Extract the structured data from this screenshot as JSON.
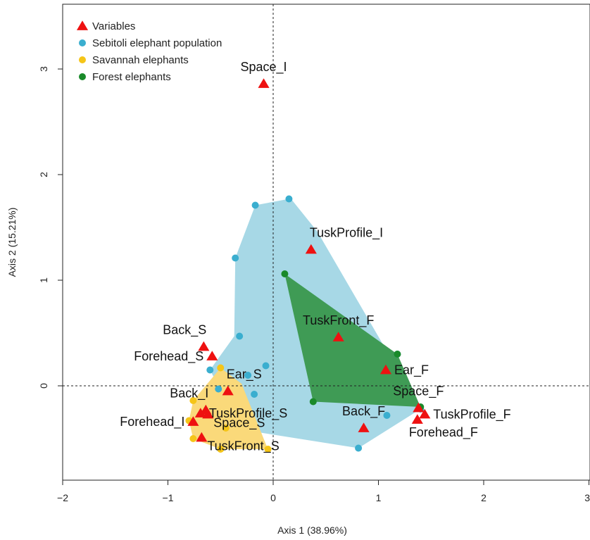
{
  "chart_data": {
    "type": "scatter",
    "xlabel": "Axis 1 (38.96%)",
    "ylabel": "Axis 2 (15.21%)",
    "xlim": [
      -2,
      3
    ],
    "ylim": [
      -0.9,
      3.6
    ],
    "xticks": [
      -2,
      -1,
      0,
      1,
      2,
      3
    ],
    "yticks": [
      0,
      1,
      2,
      3
    ],
    "xtick_labels": [
      "−2",
      "−1",
      "0",
      "1",
      "2",
      "3"
    ],
    "ytick_labels": [
      "0",
      "1",
      "2",
      "3"
    ],
    "grid": false,
    "reference_lines": {
      "x": 0,
      "y": 0,
      "style": "dashed"
    },
    "legend": {
      "placement": "top-left",
      "entries": [
        {
          "label": "Variables",
          "marker": "triangle",
          "color": "#ee1111"
        },
        {
          "label": "Sebitoli elephant population",
          "marker": "circle",
          "color": "#3aaecf"
        },
        {
          "label": "Savannah elephants",
          "marker": "circle",
          "color": "#f5c518"
        },
        {
          "label": "Forest elephants",
          "marker": "circle",
          "color": "#1a8a2a"
        }
      ]
    },
    "hulls": [
      {
        "group": "Sebitoli elephant population",
        "fill": "#a7d8e6",
        "vertices": [
          [
            0.15,
            1.77
          ],
          [
            0.17,
            1.77
          ],
          [
            0.42,
            1.46
          ],
          [
            1.4,
            -0.22
          ],
          [
            0.81,
            -0.59
          ],
          [
            -0.27,
            -0.42
          ],
          [
            -0.38,
            -0.27
          ],
          [
            -0.6,
            0.15
          ],
          [
            -0.37,
            0.47
          ],
          [
            -0.36,
            1.21
          ],
          [
            -0.17,
            1.71
          ]
        ]
      },
      {
        "group": "Forest elephants",
        "fill": "#3f9b55",
        "vertices": [
          [
            0.11,
            1.06
          ],
          [
            1.18,
            0.3
          ],
          [
            1.4,
            -0.2
          ],
          [
            0.38,
            -0.15
          ]
        ]
      },
      {
        "group": "Savannah elephants",
        "fill": "#fad97a",
        "vertices": [
          [
            -0.5,
            0.17
          ],
          [
            -0.3,
            0.02
          ],
          [
            -0.05,
            -0.6
          ],
          [
            -0.5,
            -0.6
          ],
          [
            -0.76,
            -0.5
          ],
          [
            -0.8,
            -0.33
          ],
          [
            -0.76,
            -0.14
          ]
        ]
      }
    ],
    "series": [
      {
        "name": "Sebitoli elephant population",
        "color": "#3aaecf",
        "points": [
          [
            0.15,
            1.77
          ],
          [
            -0.17,
            1.71
          ],
          [
            -0.36,
            1.21
          ],
          [
            -0.32,
            0.47
          ],
          [
            -0.07,
            0.19
          ],
          [
            -0.24,
            0.1
          ],
          [
            -0.6,
            0.15
          ],
          [
            -0.52,
            -0.03
          ],
          [
            -0.18,
            -0.08
          ],
          [
            1.08,
            -0.28
          ],
          [
            0.81,
            -0.59
          ],
          [
            1.4,
            -0.22
          ],
          [
            1.18,
            0.3
          ]
        ]
      },
      {
        "name": "Savannah elephants",
        "color": "#f5c518",
        "points": [
          [
            -0.5,
            0.17
          ],
          [
            -0.76,
            -0.14
          ],
          [
            -0.8,
            -0.33
          ],
          [
            -0.76,
            -0.5
          ],
          [
            -0.45,
            -0.4
          ],
          [
            -0.5,
            -0.6
          ],
          [
            -0.05,
            -0.6
          ]
        ]
      },
      {
        "name": "Forest elephants",
        "color": "#1a8a2a",
        "points": [
          [
            0.11,
            1.06
          ],
          [
            0.38,
            -0.15
          ],
          [
            1.18,
            0.3
          ],
          [
            1.4,
            -0.2
          ]
        ]
      }
    ],
    "variables": [
      {
        "label": "Space_I",
        "x": -0.09,
        "y": 2.86,
        "label_anchor": "above"
      },
      {
        "label": "TuskProfile_I",
        "x": 0.36,
        "y": 1.29,
        "label_anchor": "above-right"
      },
      {
        "label": "TuskFront_F",
        "x": 0.62,
        "y": 0.46,
        "label_anchor": "above"
      },
      {
        "label": "Ear_F",
        "x": 1.07,
        "y": 0.15,
        "label_anchor": "right"
      },
      {
        "label": "Space_F",
        "x": 1.38,
        "y": -0.21,
        "label_anchor": "above"
      },
      {
        "label": "TuskProfile_F",
        "x": 1.44,
        "y": -0.27,
        "label_anchor": "right"
      },
      {
        "label": "Forehead_F",
        "x": 1.37,
        "y": -0.32,
        "label_anchor": "below"
      },
      {
        "label": "Back_F",
        "x": 0.86,
        "y": -0.4,
        "label_anchor": "above"
      },
      {
        "label": "Back_S",
        "x": -0.66,
        "y": 0.37,
        "label_anchor": "above-left"
      },
      {
        "label": "Forehead_S",
        "x": -0.58,
        "y": 0.28,
        "label_anchor": "left"
      },
      {
        "label": "Ear_S",
        "x": -0.43,
        "y": -0.05,
        "label_anchor": "above-right"
      },
      {
        "label": "Back_I",
        "x": -0.64,
        "y": -0.23,
        "label_anchor": "above-left"
      },
      {
        "label": "TuskProfile_S",
        "x": -0.69,
        "y": -0.26,
        "label_anchor": "right"
      },
      {
        "label": "Forehead_I",
        "x": -0.76,
        "y": -0.34,
        "label_anchor": "left"
      },
      {
        "label": "Space_S",
        "x": -0.62,
        "y": -0.27,
        "label_anchor": "below-right"
      },
      {
        "label": "TuskFront_S",
        "x": -0.68,
        "y": -0.49,
        "label_anchor": "below-right"
      }
    ]
  }
}
